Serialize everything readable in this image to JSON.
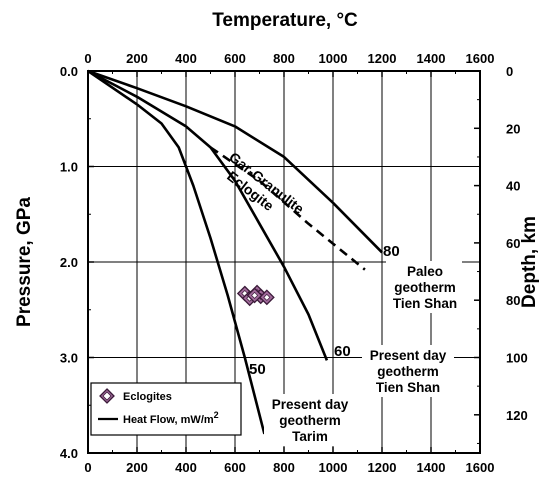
{
  "chart_data": {
    "type": "line",
    "title": "Temperature, °C",
    "xlabel": "Temperature, °C",
    "ylabel_left": "Pressure, GPa",
    "ylabel_right": "Depth, km",
    "xlim": [
      0,
      1600
    ],
    "ylim_pressure": [
      0,
      4.0
    ],
    "x_ticks": [
      "0",
      "200",
      "400",
      "600",
      "800",
      "1000",
      "1200",
      "1400",
      "1600"
    ],
    "y_ticks_left": [
      "0.0",
      "1.0",
      "2.0",
      "3.0",
      "4.0"
    ],
    "y_ticks_right": [
      "0",
      "20",
      "40",
      "60",
      "80",
      "100",
      "120"
    ],
    "grid": true,
    "legend_position": "bottom-left",
    "series": [
      {
        "name": "80",
        "style": "solid",
        "points": [
          [
            0,
            0.0
          ],
          [
            200,
            0.18
          ],
          [
            400,
            0.37
          ],
          [
            600,
            0.58
          ],
          [
            800,
            0.9
          ],
          [
            1000,
            1.38
          ],
          [
            1200,
            1.9
          ]
        ]
      },
      {
        "name": "60",
        "style": "solid",
        "points": [
          [
            0,
            0.0
          ],
          [
            200,
            0.27
          ],
          [
            400,
            0.58
          ],
          [
            500,
            0.8
          ],
          [
            600,
            1.15
          ],
          [
            700,
            1.6
          ],
          [
            800,
            2.05
          ],
          [
            900,
            2.55
          ],
          [
            975,
            3.03
          ]
        ]
      },
      {
        "name": "50",
        "style": "solid",
        "points": [
          [
            0,
            0.0
          ],
          [
            200,
            0.35
          ],
          [
            300,
            0.55
          ],
          [
            370,
            0.8
          ],
          [
            430,
            1.2
          ],
          [
            500,
            1.75
          ],
          [
            570,
            2.35
          ],
          [
            640,
            3.0
          ],
          [
            720,
            3.8
          ]
        ]
      },
      {
        "name": "Gar-Granulite / Eclogite",
        "style": "dashed",
        "points": [
          [
            500,
            0.8
          ],
          [
            700,
            1.15
          ],
          [
            900,
            1.6
          ],
          [
            1130,
            2.08
          ]
        ]
      }
    ],
    "eclogites": [
      [
        640,
        2.33
      ],
      [
        660,
        2.38
      ],
      [
        690,
        2.32
      ],
      [
        705,
        2.36
      ],
      [
        730,
        2.37
      ],
      [
        680,
        2.35
      ]
    ],
    "annotations": {
      "label_80": "80",
      "label_60": "60",
      "label_50": "50",
      "gar_granulite": "Gar-Granulite",
      "eclogite": "Eclogite",
      "paleo_1": "Paleo",
      "paleo_2": "geotherm",
      "paleo_3": "Tien Shan",
      "tien_1": "Present day",
      "tien_2": "geotherm",
      "tien_3": "Tien Shan",
      "tarim_1": "Present day",
      "tarim_2": "geotherm",
      "tarim_3": "Tarim"
    },
    "legend": {
      "eclogites": "Eclogites",
      "heat_flow": "Heat Flow, mW/m",
      "heat_flow_sup": "2"
    },
    "colors": {
      "eclogite_fill": "#a06a9a",
      "eclogite_stroke": "#3a1a38",
      "line": "#000000"
    }
  }
}
